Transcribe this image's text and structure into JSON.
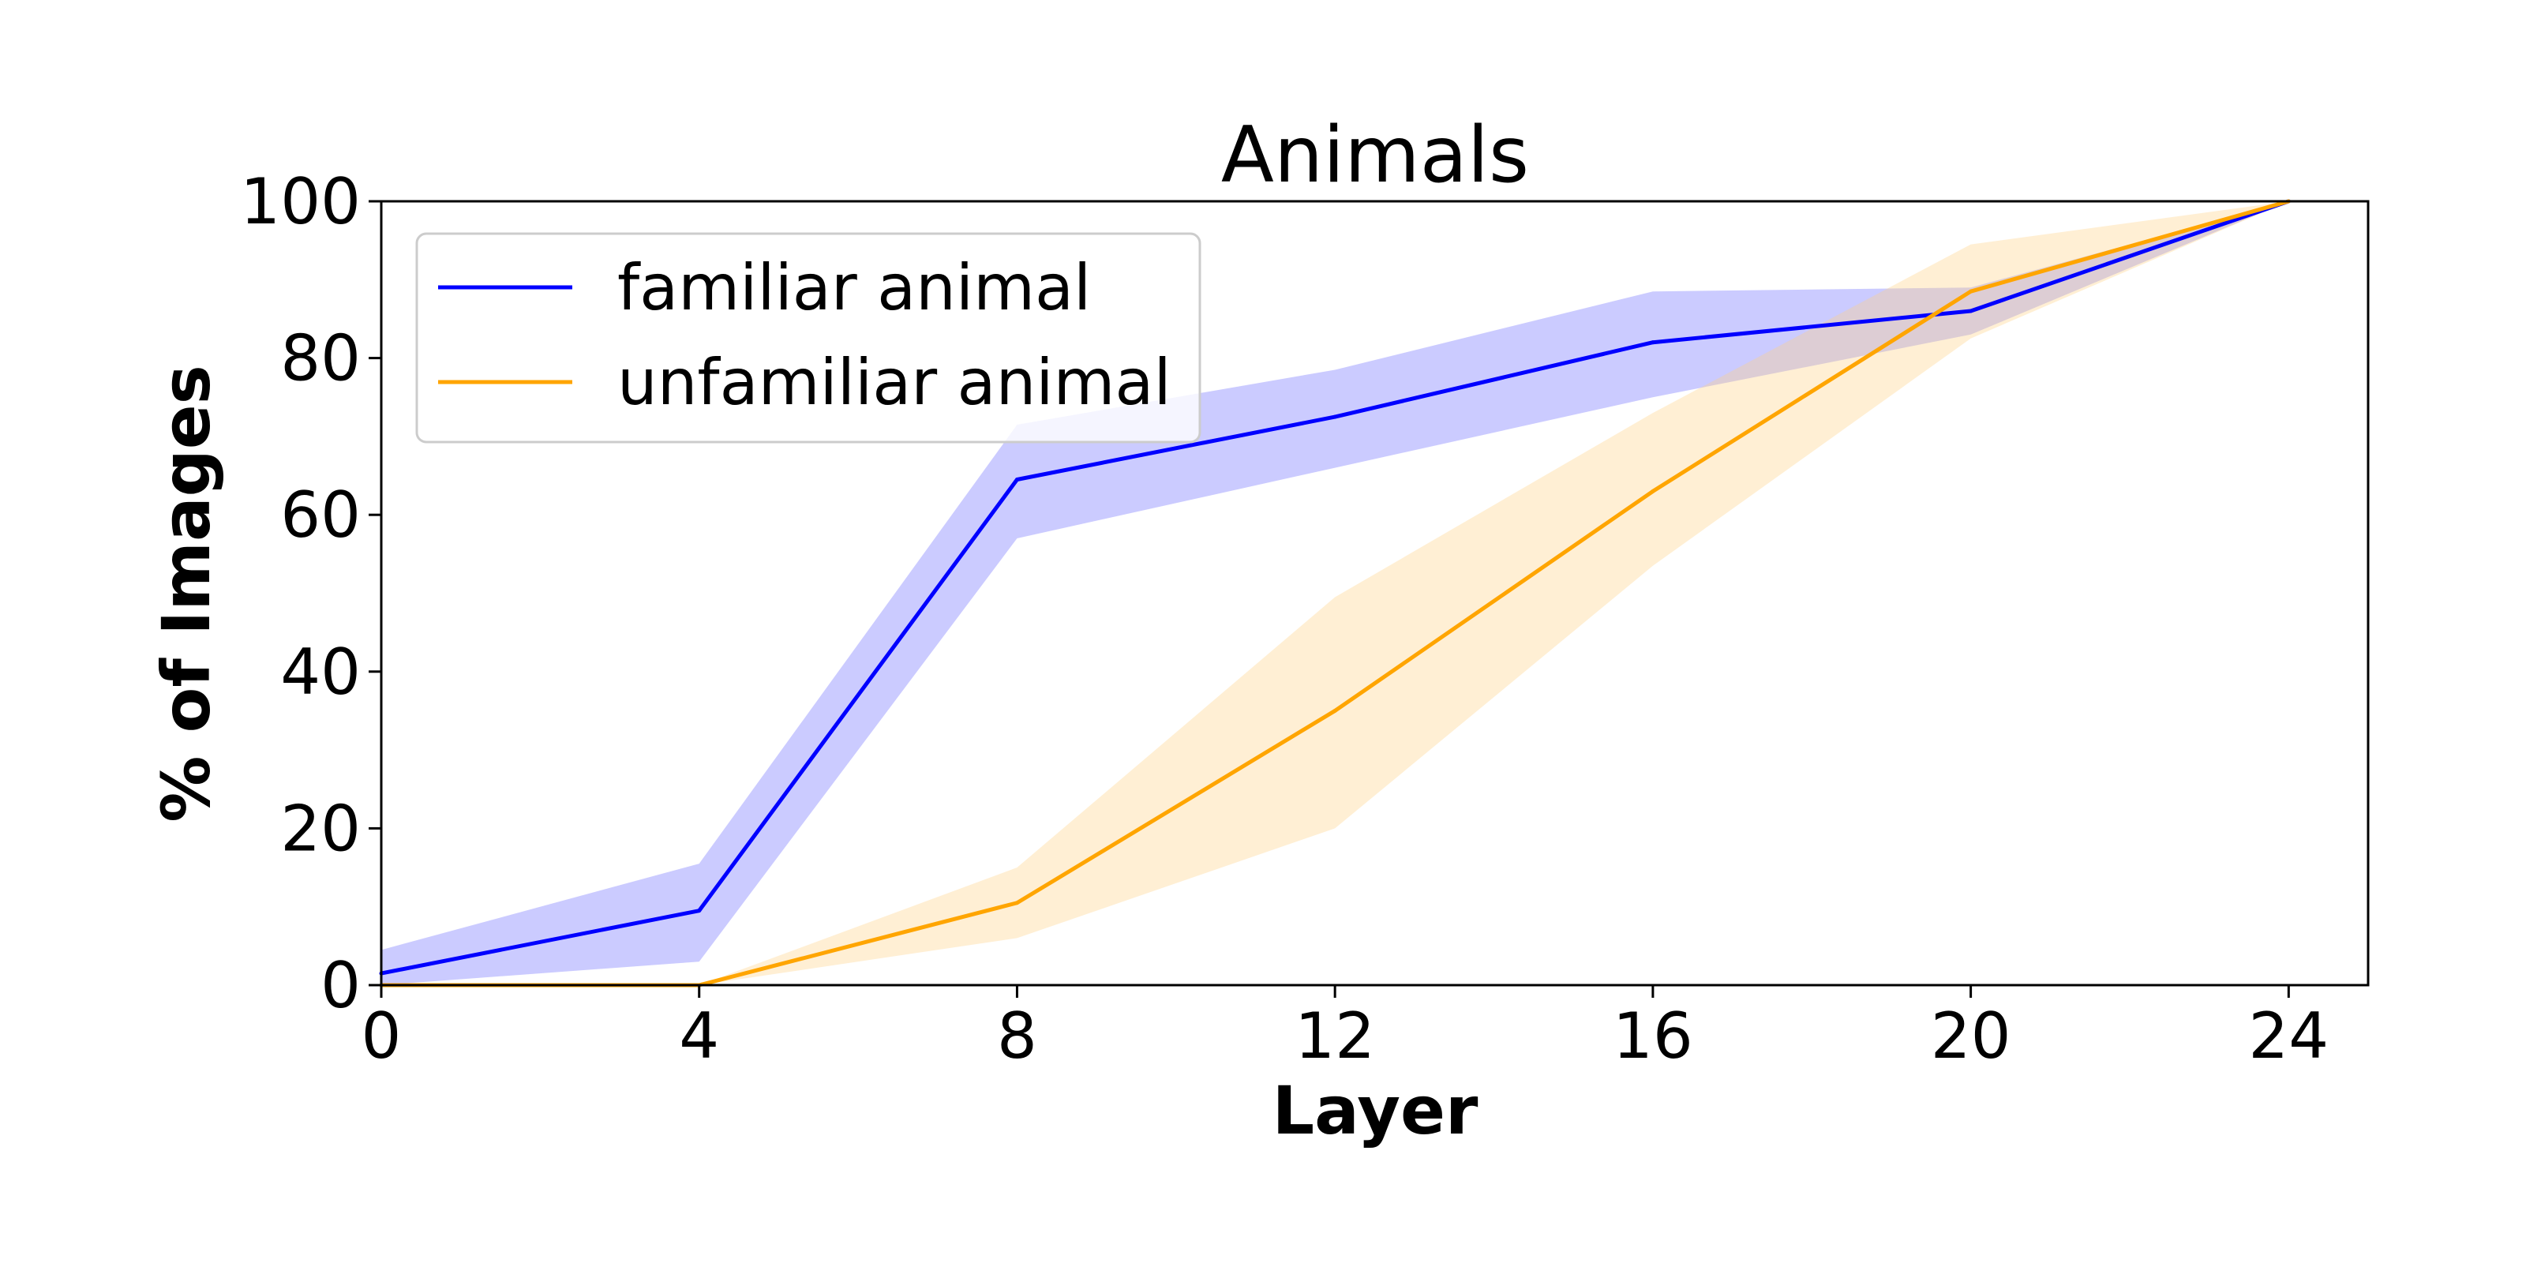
{
  "chart_data": {
    "type": "line",
    "title": "Animals",
    "xlabel": "Layer",
    "ylabel": "% of Images",
    "xlim": [
      0,
      25
    ],
    "ylim": [
      0,
      100
    ],
    "x_ticks": [
      "0",
      "4",
      "8",
      "12",
      "16",
      "20",
      "24"
    ],
    "y_ticks": [
      "0",
      "20",
      "40",
      "60",
      "80",
      "100"
    ],
    "grid": false,
    "legend_position": "top-left",
    "x": [
      0,
      4,
      8,
      12,
      16,
      20,
      24
    ],
    "series": [
      {
        "name": "familiar animal",
        "color": "#0000ff",
        "band_color": "#6666ff",
        "values": [
          1.5,
          9.5,
          64.5,
          72.5,
          82,
          86,
          100
        ],
        "lower": [
          0,
          3,
          57,
          66,
          75,
          83,
          100
        ],
        "upper": [
          4.5,
          15.5,
          71.5,
          78.5,
          88.5,
          89,
          100
        ]
      },
      {
        "name": "unfamiliar animal",
        "color": "#ffa500",
        "band_color": "#ffd080",
        "values": [
          0,
          0,
          10.5,
          35,
          63,
          88.5,
          100
        ],
        "lower": [
          0,
          0,
          6,
          20,
          53.5,
          82.5,
          100
        ],
        "upper": [
          0,
          0,
          15,
          49.5,
          73,
          94.5,
          100
        ]
      }
    ]
  }
}
